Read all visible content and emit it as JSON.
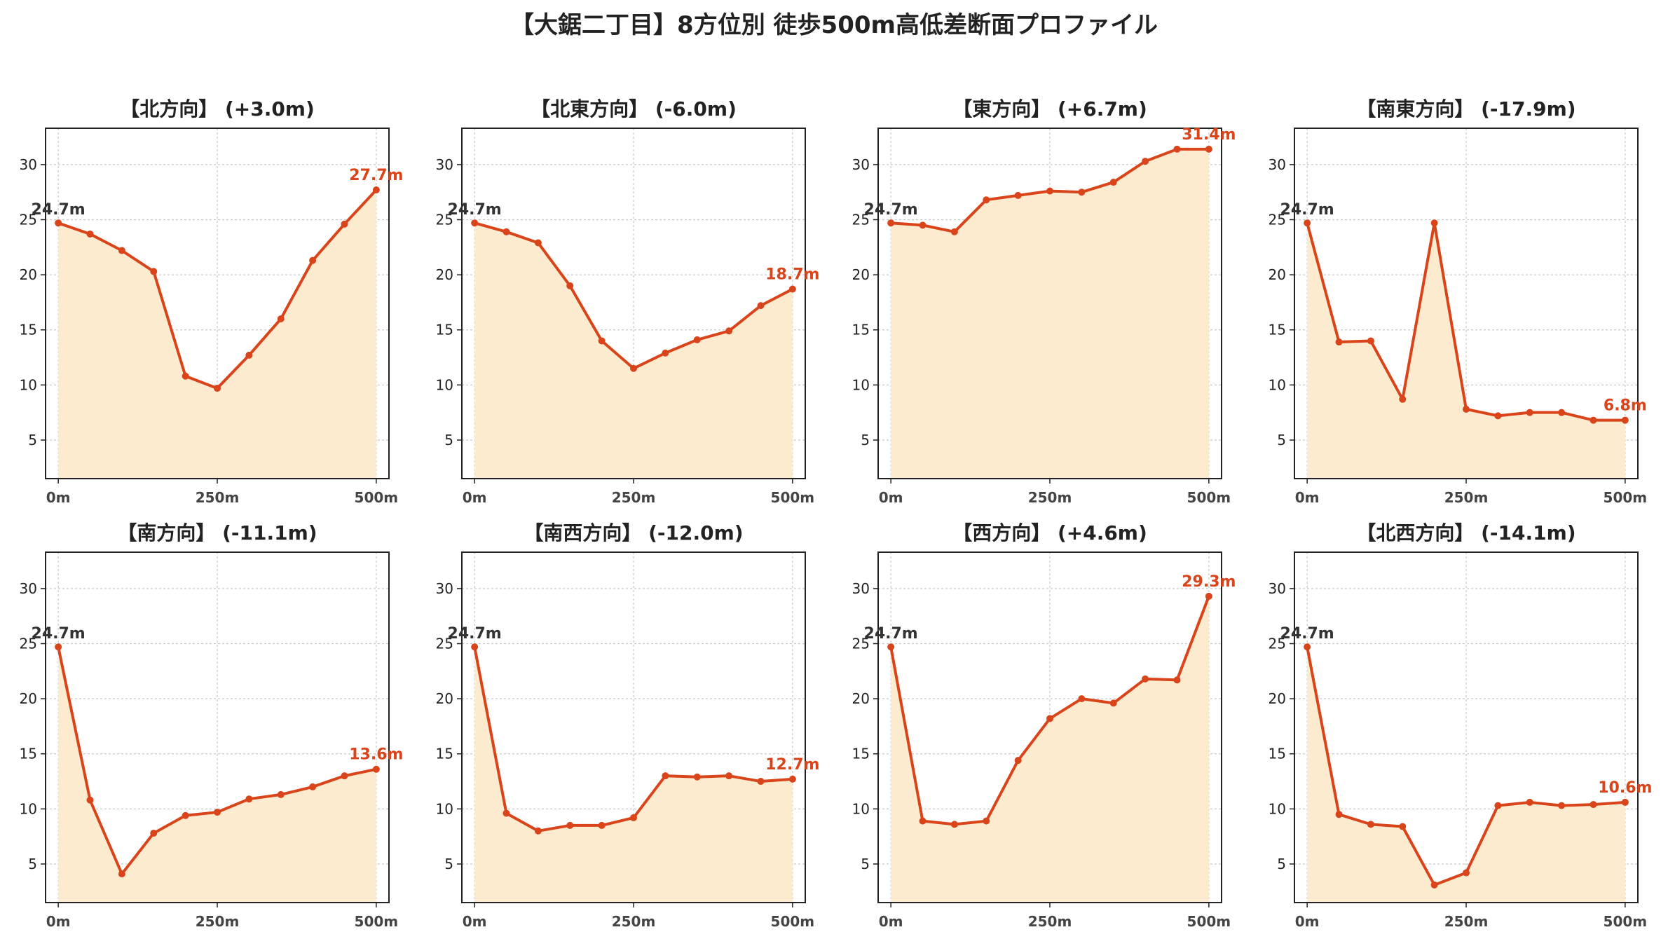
{
  "title": "【大鋸二丁目】8方位別 徒歩500m高低差断面プロファイル",
  "colors": {
    "line": "#d9441a",
    "fill": "#fdebd0",
    "grid": "#c8c8c8",
    "start_label": "#333333",
    "end_label": "#d9441a"
  },
  "chart_data": [
    {
      "type": "area",
      "title": "【北方向】 (+3.0m)",
      "x": [
        0,
        50,
        100,
        150,
        200,
        250,
        300,
        350,
        400,
        450,
        500
      ],
      "x_ticks": [
        "0m",
        "250m",
        "500m"
      ],
      "y_ticks": [
        5,
        10,
        15,
        20,
        25,
        30
      ],
      "ylim": [
        1.5,
        33.3
      ],
      "xlim": [
        -20,
        520
      ],
      "values": [
        24.7,
        23.7,
        22.2,
        20.3,
        10.8,
        9.7,
        12.7,
        16.0,
        21.3,
        24.6,
        27.7
      ],
      "start_label": "24.7m",
      "end_label": "27.7m",
      "grid": true
    },
    {
      "type": "area",
      "title": "【北東方向】 (-6.0m)",
      "x": [
        0,
        50,
        100,
        150,
        200,
        250,
        300,
        350,
        400,
        450,
        500
      ],
      "x_ticks": [
        "0m",
        "250m",
        "500m"
      ],
      "y_ticks": [
        5,
        10,
        15,
        20,
        25,
        30
      ],
      "ylim": [
        1.5,
        33.3
      ],
      "xlim": [
        -20,
        520
      ],
      "values": [
        24.7,
        23.9,
        22.9,
        19.0,
        14.0,
        11.5,
        12.9,
        14.1,
        14.9,
        17.2,
        18.7
      ],
      "start_label": "24.7m",
      "end_label": "18.7m",
      "grid": true
    },
    {
      "type": "area",
      "title": "【東方向】 (+6.7m)",
      "x": [
        0,
        50,
        100,
        150,
        200,
        250,
        300,
        350,
        400,
        450,
        500
      ],
      "x_ticks": [
        "0m",
        "250m",
        "500m"
      ],
      "y_ticks": [
        5,
        10,
        15,
        20,
        25,
        30
      ],
      "ylim": [
        1.5,
        33.3
      ],
      "xlim": [
        -20,
        520
      ],
      "values": [
        24.7,
        24.5,
        23.9,
        26.8,
        27.2,
        27.6,
        27.5,
        28.4,
        30.3,
        31.4,
        31.4
      ],
      "start_label": "24.7m",
      "end_label": "31.4m",
      "grid": true
    },
    {
      "type": "area",
      "title": "【南東方向】 (-17.9m)",
      "x": [
        0,
        50,
        100,
        150,
        200,
        250,
        300,
        350,
        400,
        450,
        500
      ],
      "x_ticks": [
        "0m",
        "250m",
        "500m"
      ],
      "y_ticks": [
        5,
        10,
        15,
        20,
        25,
        30
      ],
      "ylim": [
        1.5,
        33.3
      ],
      "xlim": [
        -20,
        520
      ],
      "values": [
        24.7,
        13.9,
        14.0,
        8.7,
        24.7,
        7.8,
        7.2,
        7.5,
        7.5,
        6.8,
        6.8
      ],
      "start_label": "24.7m",
      "end_label": "6.8m",
      "grid": true
    },
    {
      "type": "area",
      "title": "【南方向】 (-11.1m)",
      "x": [
        0,
        50,
        100,
        150,
        200,
        250,
        300,
        350,
        400,
        450,
        500
      ],
      "x_ticks": [
        "0m",
        "250m",
        "500m"
      ],
      "y_ticks": [
        5,
        10,
        15,
        20,
        25,
        30
      ],
      "ylim": [
        1.5,
        33.3
      ],
      "xlim": [
        -20,
        520
      ],
      "values": [
        24.7,
        10.8,
        4.1,
        7.8,
        9.4,
        9.7,
        10.9,
        11.3,
        12.0,
        13.0,
        13.6
      ],
      "start_label": "24.7m",
      "end_label": "13.6m",
      "grid": true
    },
    {
      "type": "area",
      "title": "【南西方向】 (-12.0m)",
      "x": [
        0,
        50,
        100,
        150,
        200,
        250,
        300,
        350,
        400,
        450,
        500
      ],
      "x_ticks": [
        "0m",
        "250m",
        "500m"
      ],
      "y_ticks": [
        5,
        10,
        15,
        20,
        25,
        30
      ],
      "ylim": [
        1.5,
        33.3
      ],
      "xlim": [
        -20,
        520
      ],
      "values": [
        24.7,
        9.6,
        8.0,
        8.5,
        8.5,
        9.2,
        13.0,
        12.9,
        13.0,
        12.5,
        12.7
      ],
      "start_label": "24.7m",
      "end_label": "12.7m",
      "grid": true
    },
    {
      "type": "area",
      "title": "【西方向】 (+4.6m)",
      "x": [
        0,
        50,
        100,
        150,
        200,
        250,
        300,
        350,
        400,
        450,
        500
      ],
      "x_ticks": [
        "0m",
        "250m",
        "500m"
      ],
      "y_ticks": [
        5,
        10,
        15,
        20,
        25,
        30
      ],
      "ylim": [
        1.5,
        33.3
      ],
      "xlim": [
        -20,
        520
      ],
      "values": [
        24.7,
        8.9,
        8.6,
        8.9,
        14.4,
        18.2,
        20.0,
        19.6,
        21.8,
        21.7,
        29.3
      ],
      "start_label": "24.7m",
      "end_label": "29.3m",
      "grid": true
    },
    {
      "type": "area",
      "title": "【北西方向】 (-14.1m)",
      "x": [
        0,
        50,
        100,
        150,
        200,
        250,
        300,
        350,
        400,
        450,
        500
      ],
      "x_ticks": [
        "0m",
        "250m",
        "500m"
      ],
      "y_ticks": [
        5,
        10,
        15,
        20,
        25,
        30
      ],
      "ylim": [
        1.5,
        33.3
      ],
      "xlim": [
        -20,
        520
      ],
      "values": [
        24.7,
        9.5,
        8.6,
        8.4,
        3.1,
        4.2,
        10.3,
        10.6,
        10.3,
        10.4,
        10.6
      ],
      "start_label": "24.7m",
      "end_label": "10.6m",
      "grid": true
    }
  ]
}
